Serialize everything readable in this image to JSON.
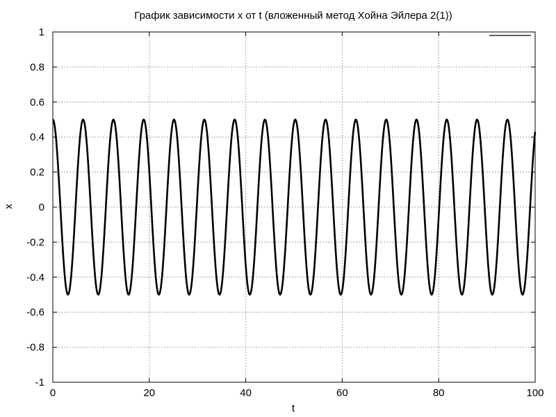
{
  "chart_data": {
    "type": "line",
    "title": "График зависимости x от t (вложенный метод Хойна Эйлера 2(1))",
    "xlabel": "t",
    "ylabel": "x",
    "xlim": [
      0,
      100
    ],
    "ylim": [
      -1,
      1
    ],
    "xticks": [
      0,
      20,
      40,
      60,
      80,
      100
    ],
    "yticks": [
      -1,
      -0.8,
      -0.6,
      -0.4,
      -0.2,
      0,
      0.2,
      0.4,
      0.6,
      0.8,
      1
    ],
    "xtick_labels": [
      "0",
      "20",
      "40",
      "60",
      "80",
      "100"
    ],
    "ytick_labels": [
      "-1",
      "-0.8",
      "-0.6",
      "-0.4",
      "-0.2",
      "0",
      "0.2",
      "0.4",
      "0.6",
      "0.8",
      "1"
    ],
    "grid": true,
    "legend": {
      "placement": "top-right",
      "entries": [
        {
          "name": "",
          "color": "#000000"
        }
      ]
    },
    "series": [
      {
        "color": "#000000",
        "x": [
          0,
          3.14,
          6.28,
          9.42,
          12.57,
          15.71,
          18.85,
          21.99,
          25.13,
          28.27,
          31.42,
          34.56,
          37.7,
          40.84,
          43.98,
          47.12,
          50.27,
          53.41,
          56.55,
          59.69,
          62.83,
          65.97,
          69.12,
          72.26,
          75.4,
          78.54,
          81.68,
          84.82,
          87.96,
          91.11,
          94.25,
          97.39,
          100
        ],
        "y": [
          0.5,
          -0.5,
          0.5,
          -0.5,
          0.5,
          -0.5,
          0.5,
          -0.5,
          0.5,
          -0.5,
          0.5,
          -0.5,
          0.5,
          -0.5,
          0.5,
          -0.5,
          0.5,
          -0.5,
          0.5,
          -0.5,
          0.5,
          -0.5,
          0.5,
          -0.5,
          0.5,
          -0.5,
          0.5,
          -0.5,
          0.5,
          -0.5,
          0.5,
          -0.5,
          0.43
        ]
      }
    ]
  }
}
